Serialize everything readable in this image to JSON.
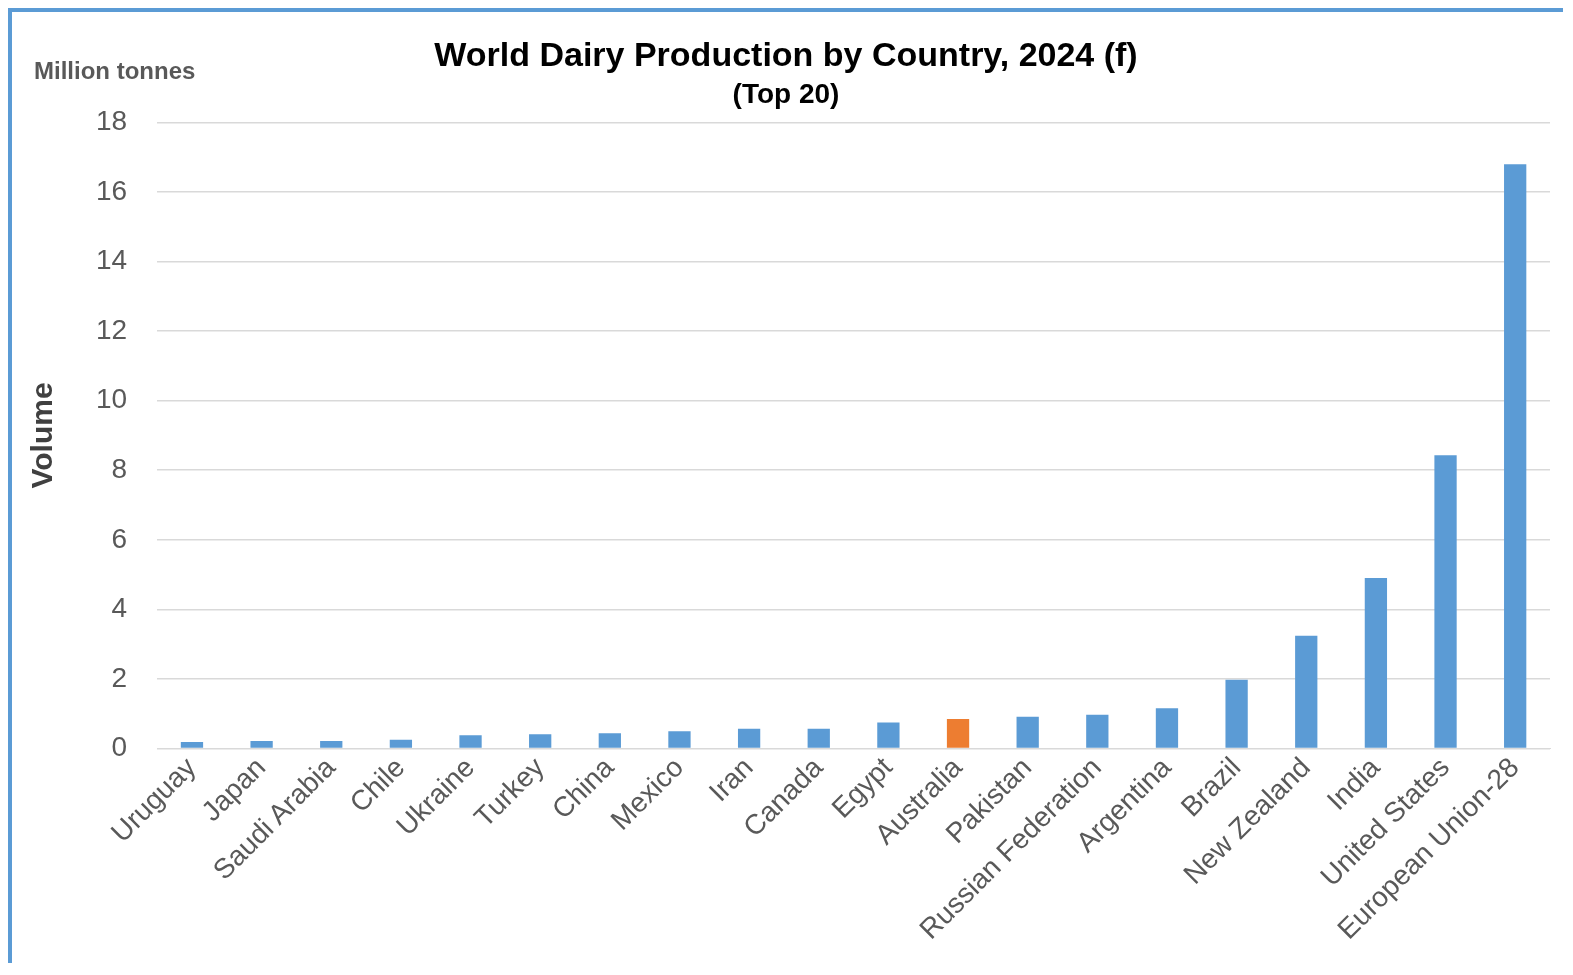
{
  "chart_data": {
    "type": "bar",
    "title": "World Dairy Production by Country, 2024 (f)",
    "subtitle": "(Top 20)",
    "ylabel": "Volume",
    "annotations": [
      "Million tonnes"
    ],
    "categories": [
      "Uruguay",
      "Japan",
      "Saudi Arabia",
      "Chile",
      "Ukraine",
      "Turkey",
      "China",
      "Mexico",
      "Iran",
      "Canada",
      "Egypt",
      "Australia",
      "Pakistan",
      "Russian Federation",
      "Argentina",
      "Brazil",
      "New Zealand",
      "India",
      "United States",
      "European Union-28"
    ],
    "values": [
      0.19,
      0.22,
      0.22,
      0.25,
      0.38,
      0.41,
      0.44,
      0.5,
      0.57,
      0.57,
      0.75,
      0.85,
      0.91,
      0.97,
      1.16,
      1.98,
      3.24,
      4.9,
      8.43,
      16.8
    ],
    "colors": [
      "#5b9bd5",
      "#5b9bd5",
      "#5b9bd5",
      "#5b9bd5",
      "#5b9bd5",
      "#5b9bd5",
      "#5b9bd5",
      "#5b9bd5",
      "#5b9bd5",
      "#5b9bd5",
      "#5b9bd5",
      "#ed7d31",
      "#5b9bd5",
      "#5b9bd5",
      "#5b9bd5",
      "#5b9bd5",
      "#5b9bd5",
      "#5b9bd5",
      "#5b9bd5",
      "#5b9bd5"
    ],
    "ylim": [
      0,
      18
    ],
    "yticks": [
      0,
      2,
      4,
      6,
      8,
      10,
      12,
      14,
      16,
      18
    ],
    "grid": "y",
    "legend": false
  }
}
